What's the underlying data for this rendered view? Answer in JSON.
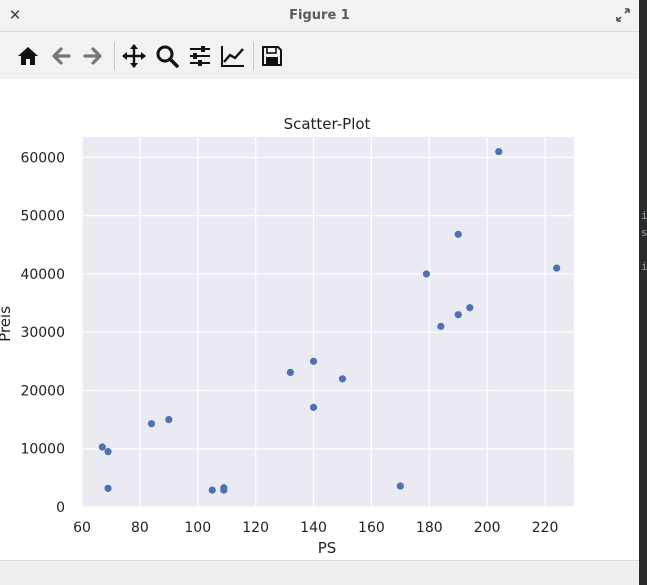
{
  "window": {
    "title": "Figure 1"
  },
  "toolbar": {
    "buttons": [
      {
        "icon": "home-icon"
      },
      {
        "icon": "back-arrow-icon"
      },
      {
        "icon": "forward-arrow-icon"
      },
      {
        "icon": "pan-icon"
      },
      {
        "icon": "zoom-icon"
      },
      {
        "icon": "configure-subplots-icon"
      },
      {
        "icon": "edit-axis-icon"
      },
      {
        "icon": "save-icon"
      }
    ]
  },
  "side_text": [
    "i",
    "se",
    "",
    "ir"
  ],
  "chart_data": {
    "type": "scatter",
    "title": "Scatter-Plot",
    "xlabel": "PS",
    "ylabel": "Preis",
    "xlim": [
      60,
      230
    ],
    "ylim": [
      0,
      63500
    ],
    "xticks": [
      "60",
      "80",
      "100",
      "120",
      "140",
      "160",
      "180",
      "200",
      "220"
    ],
    "yticks": [
      "0",
      "10000",
      "20000",
      "30000",
      "40000",
      "50000",
      "60000"
    ],
    "grid": true,
    "marker_color": "#4c72b0",
    "background_color": "#eaeaf2",
    "points": [
      {
        "x": 67,
        "y": 10300
      },
      {
        "x": 69,
        "y": 9500
      },
      {
        "x": 69,
        "y": 3200
      },
      {
        "x": 84,
        "y": 14300
      },
      {
        "x": 90,
        "y": 15000
      },
      {
        "x": 105,
        "y": 2900
      },
      {
        "x": 109,
        "y": 3300
      },
      {
        "x": 109,
        "y": 2900
      },
      {
        "x": 132,
        "y": 23100
      },
      {
        "x": 140,
        "y": 25000
      },
      {
        "x": 140,
        "y": 17100
      },
      {
        "x": 150,
        "y": 22000
      },
      {
        "x": 170,
        "y": 3600
      },
      {
        "x": 179,
        "y": 40000
      },
      {
        "x": 184,
        "y": 31000
      },
      {
        "x": 190,
        "y": 46800
      },
      {
        "x": 190,
        "y": 33000
      },
      {
        "x": 194,
        "y": 34200
      },
      {
        "x": 204,
        "y": 61000
      },
      {
        "x": 224,
        "y": 41000
      }
    ]
  }
}
